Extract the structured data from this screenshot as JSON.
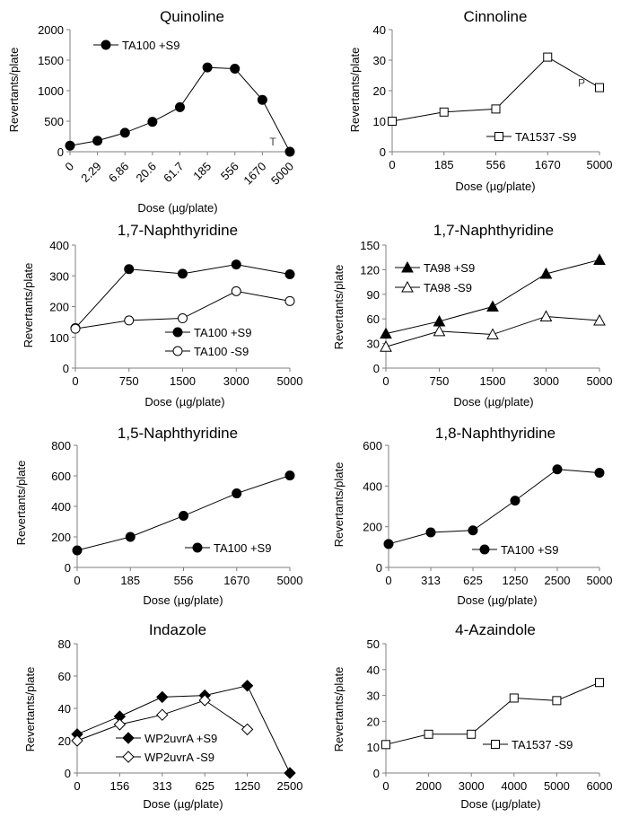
{
  "chart_data": [
    {
      "type": "line",
      "title": "Quinoline",
      "xlabel": "Dose (µg/plate)",
      "ylabel": "Revertants/plate",
      "categories": [
        "0",
        "2.29",
        "6.86",
        "20.6",
        "61.7",
        "185",
        "556",
        "1670",
        "5000"
      ],
      "ylim": [
        0,
        2000
      ],
      "yticks": [
        0,
        500,
        1000,
        1500,
        2000
      ],
      "series": [
        {
          "name": "TA100 +S9",
          "marker": "filled-circle",
          "values": [
            100,
            180,
            310,
            490,
            730,
            1380,
            1360,
            850,
            0
          ]
        }
      ],
      "legend": "top-left",
      "annotations": [
        {
          "text": "T",
          "near": "5000"
        }
      ]
    },
    {
      "type": "line",
      "title": "Cinnoline",
      "xlabel": "Dose (µg/plate)",
      "ylabel": "Revertants/plate",
      "categories": [
        "0",
        "185",
        "556",
        "1670",
        "5000"
      ],
      "ylim": [
        0,
        40
      ],
      "yticks": [
        0,
        10,
        20,
        30,
        40
      ],
      "series": [
        {
          "name": "TA1537 -S9",
          "marker": "open-square",
          "values": [
            10,
            13,
            14,
            31,
            21
          ]
        }
      ],
      "legend": "bottom-right",
      "annotations": [
        {
          "text": "P",
          "near": "5000"
        }
      ]
    },
    {
      "type": "line",
      "title": "1,7-Naphthyridine",
      "xlabel": "Dose (µg/plate)",
      "ylabel": "Revertants/plate",
      "categories": [
        "0",
        "750",
        "1500",
        "3000",
        "5000"
      ],
      "ylim": [
        0,
        400
      ],
      "yticks": [
        0,
        100,
        200,
        300,
        400
      ],
      "series": [
        {
          "name": "TA100 +S9",
          "marker": "filled-circle",
          "values": [
            130,
            322,
            307,
            337,
            305
          ]
        },
        {
          "name": "TA100 -S9",
          "marker": "open-circle",
          "values": [
            128,
            155,
            162,
            250,
            218
          ]
        }
      ],
      "legend": "bottom-right"
    },
    {
      "type": "line",
      "title": "1,7-Naphthyridine",
      "xlabel": "Dose (µg/plate)",
      "ylabel": "Revertants/plate",
      "categories": [
        "0",
        "750",
        "1500",
        "3000",
        "5000"
      ],
      "ylim": [
        0,
        150
      ],
      "yticks": [
        0,
        30,
        60,
        90,
        120,
        150
      ],
      "series": [
        {
          "name": "TA98 +S9",
          "marker": "filled-triangle",
          "values": [
            42,
            57,
            75,
            115,
            132
          ]
        },
        {
          "name": "TA98 -S9",
          "marker": "open-triangle",
          "values": [
            26,
            45,
            41,
            63,
            58
          ]
        }
      ],
      "legend": "top-left"
    },
    {
      "type": "line",
      "title": "1,5-Naphthyridine",
      "xlabel": "Dose (µg/plate)",
      "ylabel": "Revertants/plate",
      "categories": [
        "0",
        "185",
        "556",
        "1670",
        "5000"
      ],
      "ylim": [
        0,
        800
      ],
      "yticks": [
        0,
        200,
        400,
        600,
        800
      ],
      "series": [
        {
          "name": "TA100 +S9",
          "marker": "filled-circle",
          "values": [
            112,
            200,
            338,
            485,
            602
          ]
        }
      ],
      "legend": "bottom-right"
    },
    {
      "type": "line",
      "title": "1,8-Naphthyridine",
      "xlabel": "Dose (µg/plate)",
      "ylabel": "Revertants/plate",
      "categories": [
        "0",
        "313",
        "625",
        "1250",
        "2500",
        "5000"
      ],
      "ylim": [
        0,
        600
      ],
      "yticks": [
        0,
        200,
        400,
        600
      ],
      "series": [
        {
          "name": "TA100 +S9",
          "marker": "filled-circle",
          "values": [
            115,
            172,
            182,
            328,
            482,
            465
          ]
        }
      ],
      "legend": "bottom-right"
    },
    {
      "type": "line",
      "title": "Indazole",
      "xlabel": "Dose (µg/plate)",
      "ylabel": "Revertants/plate",
      "categories": [
        "0",
        "156",
        "313",
        "625",
        "1250",
        "2500"
      ],
      "ylim": [
        0,
        80
      ],
      "yticks": [
        0,
        20,
        40,
        60,
        80
      ],
      "series": [
        {
          "name": "WP2uvrA +S9",
          "marker": "filled-diamond",
          "values": [
            24,
            35,
            47,
            48,
            54,
            0
          ]
        },
        {
          "name": "WP2uvrA -S9",
          "marker": "open-diamond",
          "values": [
            20,
            30,
            36,
            45,
            27,
            null
          ]
        }
      ],
      "legend": "bottom-center"
    },
    {
      "type": "line",
      "title": "4-Azaindole",
      "xlabel": "Dose (µg/plate)",
      "ylabel": "Revertants/plate",
      "categories": [
        "0",
        "2000",
        "3000",
        "4000",
        "5000",
        "6000"
      ],
      "ylim": [
        0,
        50
      ],
      "yticks": [
        0,
        10,
        20,
        30,
        40,
        50
      ],
      "series": [
        {
          "name": "TA1537 -S9",
          "marker": "open-square",
          "values": [
            11,
            15,
            15,
            29,
            28,
            35
          ]
        }
      ],
      "legend": "bottom-right"
    }
  ]
}
